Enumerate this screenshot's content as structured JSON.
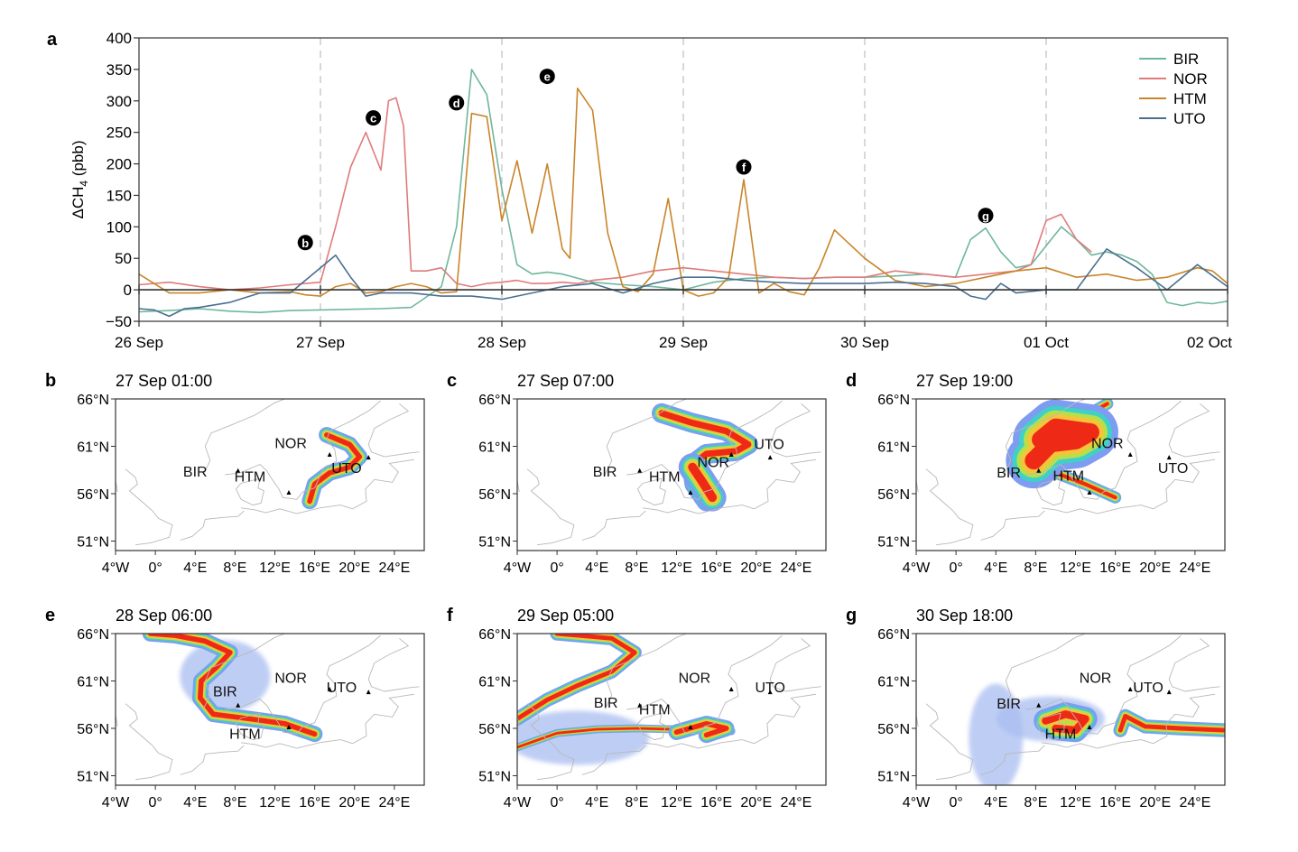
{
  "colors": {
    "BIR": "#6fb79b",
    "NOR": "#e07b7b",
    "HTM": "#c9852a",
    "UTO": "#4a6f92",
    "coast": "#b8b8b8",
    "guide": "#c8c8c8"
  },
  "chart_data": {
    "type": "line",
    "panel_label": "a",
    "ylabel_main": "ΔCH",
    "ylabel_sub": "4",
    "ylabel_unit": " (pbb)",
    "ylim": [
      -50,
      400
    ],
    "yticks": [
      -50,
      0,
      50,
      100,
      150,
      200,
      250,
      300,
      350,
      400
    ],
    "ytick_labels": [
      "−50",
      "0",
      "50",
      "100",
      "150",
      "200",
      "250",
      "300",
      "350",
      "400"
    ],
    "xlim": [
      0,
      144
    ],
    "xticks": [
      0,
      24,
      48,
      72,
      96,
      120,
      144
    ],
    "xtick_labels": [
      "26 Sep",
      "27 Sep",
      "28 Sep",
      "29 Sep",
      "30 Sep",
      "01 Oct",
      "02 Oct"
    ],
    "grid": "dashed vertical at day boundaries",
    "legend_position": "top-right",
    "series": [
      {
        "name": "BIR",
        "color": "#6fb79b",
        "x": [
          0,
          4,
          8,
          12,
          16,
          20,
          24,
          28,
          32,
          36,
          40,
          42,
          44,
          46,
          48,
          50,
          52,
          54,
          56,
          60,
          64,
          68,
          72,
          76,
          80,
          84,
          88,
          92,
          96,
          100,
          104,
          108,
          110,
          112,
          114,
          116,
          118,
          120,
          122,
          124,
          126,
          128,
          130,
          132,
          134,
          136,
          138,
          140,
          142,
          144
        ],
        "y": [
          -35,
          -33,
          -30,
          -34,
          -36,
          -33,
          -32,
          -31,
          -30,
          -28,
          5,
          100,
          350,
          310,
          160,
          40,
          25,
          28,
          25,
          12,
          8,
          5,
          0,
          12,
          18,
          20,
          18,
          20,
          20,
          22,
          25,
          20,
          80,
          98,
          60,
          35,
          40,
          70,
          100,
          80,
          55,
          60,
          55,
          45,
          25,
          -20,
          -25,
          -20,
          -22,
          -18
        ]
      },
      {
        "name": "NOR",
        "color": "#e07b7b",
        "x": [
          0,
          4,
          8,
          12,
          16,
          20,
          22,
          24,
          26,
          28,
          30,
          32,
          33,
          34,
          35,
          36,
          38,
          40,
          42,
          44,
          46,
          48,
          50,
          52,
          54,
          56,
          58,
          60,
          64,
          68,
          72,
          76,
          80,
          84,
          88,
          92,
          96,
          100,
          104,
          108,
          112,
          116,
          118,
          120,
          122,
          124,
          126
        ],
        "y": [
          8,
          12,
          5,
          0,
          3,
          8,
          10,
          12,
          100,
          195,
          250,
          190,
          300,
          305,
          260,
          30,
          30,
          35,
          10,
          5,
          10,
          12,
          15,
          10,
          10,
          12,
          10,
          15,
          20,
          30,
          35,
          30,
          25,
          20,
          18,
          20,
          20,
          30,
          25,
          20,
          25,
          30,
          40,
          110,
          120,
          80,
          60
        ]
      },
      {
        "name": "HTM",
        "color": "#c9852a",
        "x": [
          0,
          4,
          8,
          12,
          16,
          20,
          22,
          24,
          26,
          28,
          30,
          32,
          34,
          36,
          38,
          40,
          42,
          44,
          46,
          48,
          50,
          52,
          54,
          56,
          57,
          58,
          60,
          62,
          64,
          66,
          68,
          70,
          72,
          74,
          76,
          78,
          80,
          82,
          84,
          86,
          88,
          90,
          92,
          96,
          100,
          104,
          108,
          112,
          116,
          120,
          124,
          128,
          132,
          136,
          140,
          142,
          144
        ],
        "y": [
          25,
          -5,
          -5,
          0,
          -5,
          -3,
          -8,
          -10,
          5,
          10,
          -5,
          -3,
          5,
          10,
          5,
          -5,
          -3,
          280,
          275,
          110,
          205,
          90,
          200,
          65,
          50,
          320,
          285,
          90,
          5,
          -3,
          25,
          145,
          0,
          -10,
          -5,
          20,
          175,
          -5,
          10,
          -3,
          -8,
          35,
          95,
          50,
          15,
          5,
          10,
          20,
          30,
          35,
          20,
          25,
          15,
          20,
          35,
          30,
          10
        ]
      },
      {
        "name": "UTO",
        "color": "#4a6f92",
        "x": [
          0,
          2,
          4,
          6,
          8,
          12,
          16,
          20,
          22,
          24,
          26,
          28,
          30,
          32,
          36,
          40,
          44,
          48,
          52,
          56,
          60,
          64,
          68,
          72,
          76,
          80,
          84,
          88,
          92,
          96,
          100,
          104,
          108,
          110,
          112,
          114,
          116,
          120,
          124,
          128,
          132,
          136,
          140,
          144
        ],
        "y": [
          -30,
          -32,
          -42,
          -30,
          -28,
          -20,
          -5,
          -5,
          15,
          35,
          55,
          20,
          -10,
          -5,
          -5,
          -10,
          -10,
          -15,
          -5,
          5,
          10,
          -5,
          10,
          20,
          20,
          15,
          12,
          10,
          10,
          10,
          12,
          10,
          5,
          -10,
          -15,
          10,
          -5,
          0,
          0,
          65,
          35,
          0,
          40,
          5
        ]
      }
    ],
    "annotations": [
      {
        "label": "b",
        "x": 22,
        "y": 75
      },
      {
        "label": "c",
        "x": 31,
        "y": 273
      },
      {
        "label": "d",
        "x": 42,
        "y": 297
      },
      {
        "label": "e",
        "x": 54,
        "y": 339
      },
      {
        "label": "f",
        "x": 80,
        "y": 195
      },
      {
        "label": "g",
        "x": 112,
        "y": 118
      }
    ]
  },
  "maps": [
    {
      "label": "b",
      "time": "27 Sep 01:00"
    },
    {
      "label": "c",
      "time": "27 Sep 07:00"
    },
    {
      "label": "d",
      "time": "27 Sep 19:00"
    },
    {
      "label": "e",
      "time": "28 Sep 06:00"
    },
    {
      "label": "f",
      "time": "29 Sep 05:00"
    },
    {
      "label": "g",
      "time": "30 Sep 18:00"
    }
  ],
  "map_axes": {
    "lat_labels": [
      "66°N",
      "61°N",
      "56°N",
      "51°N"
    ],
    "lon_labels": [
      "4°W",
      "0°",
      "4°E",
      "8°E",
      "12°E",
      "16°E",
      "20°E",
      "24°E"
    ]
  },
  "stations": [
    "BIR",
    "NOR",
    "HTM",
    "UTO"
  ]
}
